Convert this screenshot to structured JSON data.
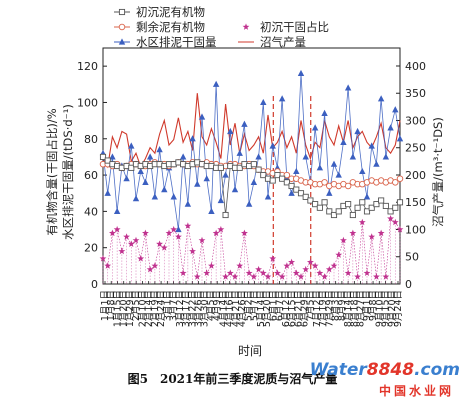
{
  "chart_data": {
    "type": "line",
    "xlabel": "时间",
    "ylabel_left_1": "有机物含量(干固占比)/%",
    "ylabel_left_2": "水区排泥干固量/(tDS·d⁻¹)",
    "ylabel_right": "沼气产量/(m³·t⁻¹DS)",
    "y_left_range": [
      0,
      130
    ],
    "y_left_ticks": [
      0,
      20,
      40,
      60,
      80,
      100,
      120
    ],
    "y_right_range": [
      0,
      433
    ],
    "y_right_ticks": [
      0,
      50,
      100,
      150,
      200,
      250,
      300,
      350,
      400
    ],
    "x_ticks": [
      "1月1日",
      "1月8日",
      "1月15日",
      "1月20日",
      "1月29日",
      "2月5日",
      "2月10日",
      "2月14日",
      "2月19日",
      "2月24日",
      "3月1日",
      "3月7日",
      "3月12日",
      "3月17日",
      "3月22日",
      "3月26日",
      "3月30日",
      "4月5日",
      "4月9日",
      "4月14日",
      "4月16日",
      "4月21日",
      "4月26日",
      "5月2日",
      "5月7日",
      "5月14日",
      "5月20日",
      "6月1日",
      "6月7日",
      "6月12日",
      "6月15日",
      "6月21日",
      "6月29日",
      "7月5日",
      "7月12日",
      "7月19日",
      "7月29日",
      "8月3日",
      "8月9日",
      "8月14日",
      "8月18日",
      "8月27日",
      "9月1日",
      "9月8日",
      "9月10日",
      "9月15日",
      "9月20日",
      "9月24日"
    ],
    "legend": [
      "初沉泥有机物",
      "剩余泥有机物",
      "初沉干固占比",
      "水区排泥干固量",
      "沼气产量"
    ],
    "series": [
      {
        "name": "初沉泥有机物",
        "axis": "left",
        "color": "#555555",
        "marker": "square",
        "values": [
          70,
          68,
          66,
          65,
          64,
          65,
          64,
          66,
          65,
          66,
          65,
          66,
          66,
          65,
          66,
          66,
          67,
          66,
          65,
          66,
          67,
          66,
          65,
          65,
          64,
          64,
          38,
          65,
          64,
          64,
          66,
          65,
          66,
          63,
          60,
          58,
          57,
          60,
          58,
          56,
          54,
          52,
          50,
          48,
          46,
          44,
          42,
          45,
          40,
          38,
          40,
          43,
          44,
          38,
          42,
          45,
          40,
          42,
          44,
          46,
          43,
          40,
          42,
          45
        ]
      },
      {
        "name": "剩余泥有机物",
        "axis": "left",
        "color": "#d9634a",
        "marker": "circle",
        "values": [
          66,
          66,
          65,
          66,
          64,
          65,
          66,
          66,
          65,
          65,
          66,
          67,
          66,
          66,
          65,
          66,
          67,
          66,
          66,
          67,
          66,
          66,
          67,
          66,
          66,
          65,
          65,
          66,
          66,
          65,
          65,
          66,
          65,
          63,
          62,
          62,
          61,
          62,
          60,
          60,
          58,
          58,
          57,
          56,
          56,
          55,
          55,
          56,
          54,
          55,
          54,
          55,
          54,
          56,
          55,
          55,
          56,
          57,
          56,
          57,
          56,
          57,
          56,
          58
        ]
      },
      {
        "name": "初沉干固占比",
        "axis": "left",
        "color": "#c0328f",
        "marker": "star",
        "values": [
          14,
          10,
          28,
          30,
          18,
          26,
          22,
          24,
          14,
          28,
          8,
          10,
          22,
          20,
          28,
          30,
          26,
          6,
          32,
          18,
          4,
          24,
          6,
          10,
          28,
          30,
          4,
          6,
          4,
          10,
          28,
          6,
          4,
          8,
          6,
          4,
          14,
          6,
          4,
          10,
          12,
          6,
          4,
          8,
          12,
          10,
          6,
          4,
          8,
          10,
          16,
          24,
          6,
          28,
          4,
          34,
          6,
          26,
          4,
          28,
          4,
          36,
          34,
          30
        ]
      },
      {
        "name": "水区排泥干固量",
        "axis": "left",
        "color": "#3b5fc0",
        "marker": "triangle",
        "values": [
          72,
          50,
          70,
          40,
          65,
          58,
          76,
          47,
          62,
          56,
          70,
          48,
          74,
          52,
          64,
          48,
          30,
          70,
          44,
          80,
          55,
          92,
          58,
          40,
          110,
          46,
          60,
          84,
          52,
          72,
          88,
          44,
          56,
          70,
          100,
          48,
          76,
          64,
          102,
          58,
          50,
          62,
          116,
          70,
          56,
          86,
          64,
          94,
          50,
          66,
          60,
          78,
          108,
          70,
          84,
          62,
          48,
          76,
          66,
          102,
          70,
          86,
          96,
          80
        ]
      },
      {
        "name": "沼气产量",
        "axis": "right",
        "color": "#d03a2c",
        "marker": "none",
        "values": [
          230,
          215,
          270,
          250,
          280,
          275,
          225,
          240,
          215,
          230,
          250,
          240,
          275,
          300,
          255,
          265,
          305,
          260,
          280,
          245,
          350,
          270,
          255,
          285,
          260,
          230,
          330,
          255,
          295,
          240,
          275,
          245,
          255,
          270,
          240,
          310,
          250,
          260,
          280,
          250,
          270,
          240,
          300,
          255,
          230,
          260,
          250,
          300,
          270,
          255,
          290,
          260,
          300,
          250,
          270,
          280,
          260,
          250,
          270,
          295,
          250,
          240,
          255,
          300
        ]
      }
    ],
    "vlines": [
      "6月1日",
      "7月5日"
    ]
  },
  "footer": {
    "caption": "图5　2021年前三季度泥质与沼气产量",
    "watermark_main_a": "Water",
    "watermark_main_b": "8848",
    "watermark_main_c": ".com",
    "watermark_sub": "中国水业网"
  }
}
